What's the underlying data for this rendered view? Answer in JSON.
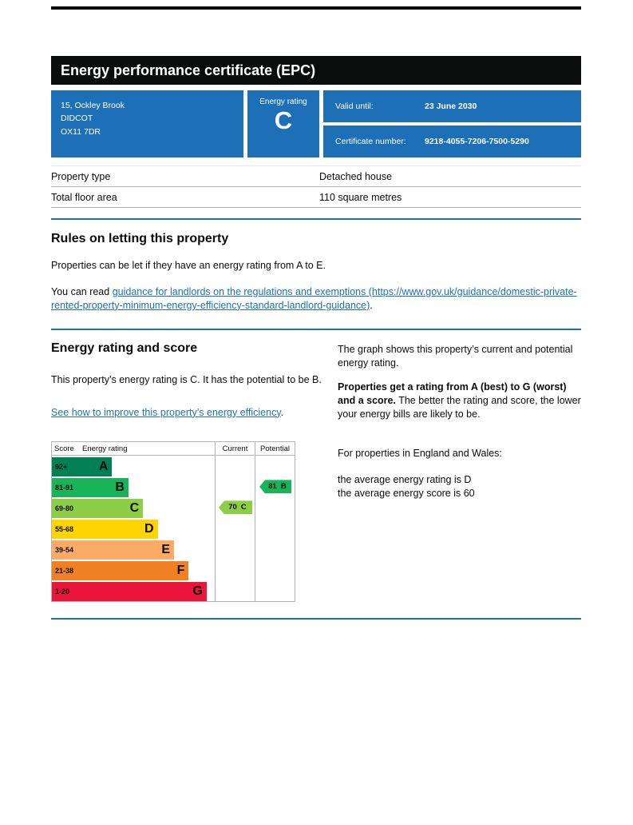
{
  "colors": {
    "brand_blue": "#1d70b8",
    "text_black": "#0b0c0c",
    "border_grey": "#b1b4b6"
  },
  "titlebar": {
    "title": "Energy performance certificate (EPC)"
  },
  "summary": {
    "address_lines": [
      "15, Ockley Brook",
      "DIDCOT",
      "OX11 7DR"
    ],
    "energy_rating_label": "Energy rating",
    "energy_rating": "C",
    "valid_until_label": "Valid until:",
    "valid_until_value": "23 June 2030",
    "certificate_number_label": "Certificate number:",
    "certificate_number_value": "9218-4055-7206-7500-5290"
  },
  "facts": {
    "rows": [
      {
        "label": "Property type",
        "value": "Detached house"
      },
      {
        "label": "Total floor area",
        "value": "110 square metres"
      }
    ]
  },
  "rules": {
    "heading": "Rules on letting this property",
    "paragraph1": "Properties can be let if they have an energy rating from A to E.",
    "paragraph2_prefix": "You can read ",
    "link_text": "guidance for landlords on the regulations and exemptions (https://www.gov.uk/guidance/domestic-private-rented-property-minimum-energy-efficiency-standard-landlord-guidance)",
    "paragraph2_suffix": "."
  },
  "rating_section": {
    "heading": "Energy rating and score",
    "intro": "This property’s energy rating is C. It has the potential to be B.",
    "improve_link_text": "See how to improve this property’s energy efficiency",
    "improve_link_suffix": ".",
    "right_p1": "The graph shows this property’s current and potential energy rating.",
    "right_p2_bold": "Properties get a rating from A (best) to G (worst) and a score.",
    "right_p2_rest": " The better the rating and score, the lower your energy bills are likely to be.",
    "right_p3": "For properties in England and Wales:",
    "right_p4_line1": "the average energy rating is D",
    "right_p4_line2": "the average energy score is 60"
  },
  "chart_data": {
    "type": "epc-rating-chart",
    "headers": {
      "score": "Score",
      "rating": "Energy rating",
      "current": "Current",
      "potential": "Potential"
    },
    "bands": [
      {
        "score": "92+",
        "letter": "A",
        "color": "#008054",
        "width_pct": 37
      },
      {
        "score": "81-91",
        "letter": "B",
        "color": "#19b459",
        "width_pct": 47
      },
      {
        "score": "69-80",
        "letter": "C",
        "color": "#8dce46",
        "width_pct": 56
      },
      {
        "score": "55-68",
        "letter": "D",
        "color": "#ffd500",
        "width_pct": 65
      },
      {
        "score": "39-54",
        "letter": "E",
        "color": "#fcaa65",
        "width_pct": 75
      },
      {
        "score": "21-38",
        "letter": "F",
        "color": "#ef8023",
        "width_pct": 84
      },
      {
        "score": "1-20",
        "letter": "G",
        "color": "#e9153b",
        "width_pct": 95
      }
    ],
    "current": {
      "score": "70",
      "band": "C",
      "color": "#8dce46"
    },
    "potential": {
      "score": "81",
      "band": "B",
      "color": "#19b459"
    }
  }
}
